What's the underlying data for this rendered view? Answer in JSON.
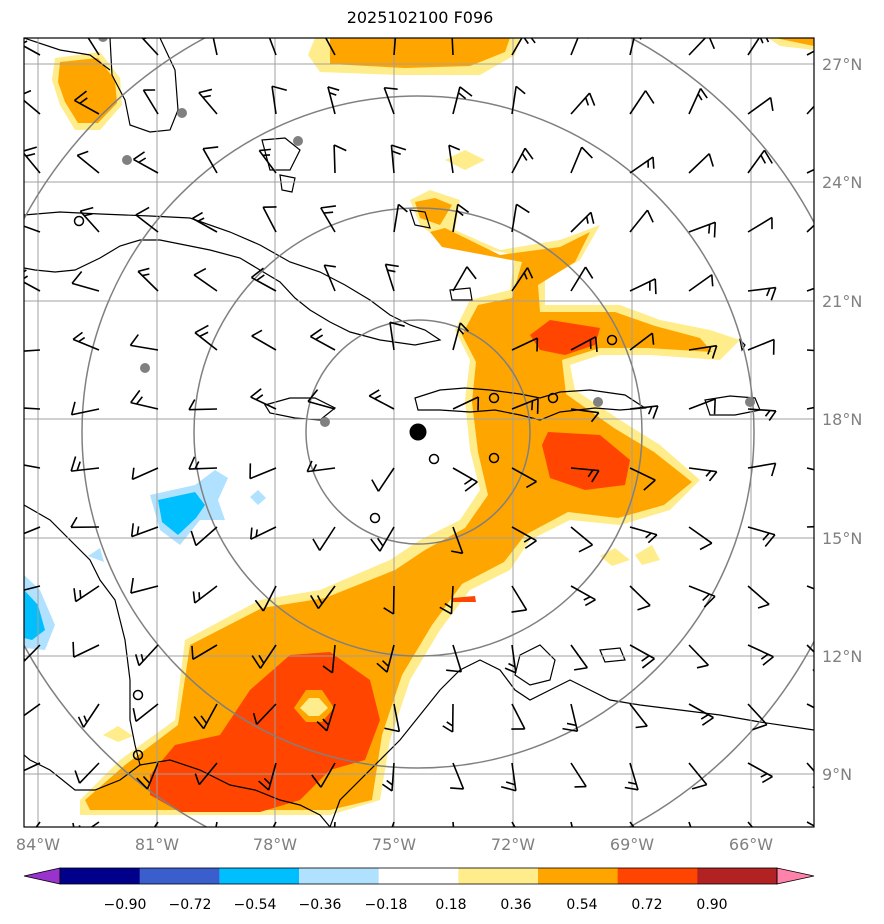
{
  "title": "2025102100 F096",
  "map": {
    "lat_labels": [
      "27°N",
      "24°N",
      "21°N",
      "18°N",
      "15°N",
      "12°N",
      "9°N"
    ],
    "lon_labels": [
      "84°W",
      "81°W",
      "78°W",
      "75°W",
      "72°W",
      "69°W",
      "66°W"
    ],
    "storm_center": {
      "lon": -74.3,
      "lat": 17.6
    },
    "range_rings": 4,
    "colors": {
      "coast": "#000000",
      "grid": "#a0a0a0",
      "ring": "#808080",
      "station": "#808080"
    }
  },
  "colorbar": {
    "ticks": [
      "−0.90",
      "−0.72",
      "−0.54",
      "−0.36",
      "−0.18",
      "0.18",
      "0.36",
      "0.54",
      "0.72",
      "0.90"
    ],
    "colors": [
      "#9a32cd",
      "#00008b",
      "#3a5fcd",
      "#00bfff",
      "#b0e2ff",
      "#ffffff",
      "#ffec8b",
      "#ffa500",
      "#ff4500",
      "#b22222",
      "#ff82ab"
    ]
  }
}
